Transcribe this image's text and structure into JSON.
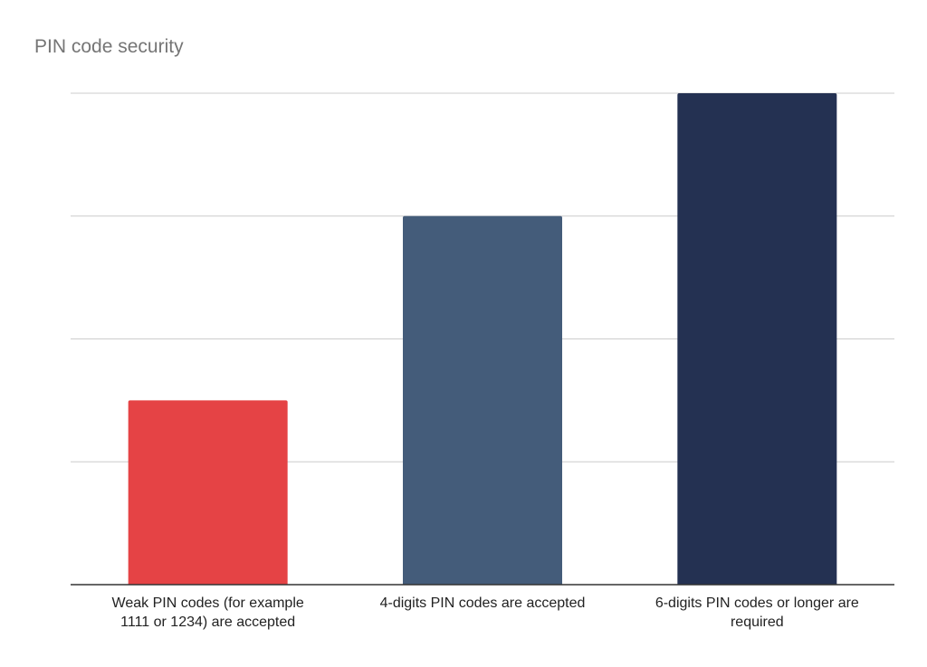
{
  "chart_data": {
    "type": "bar",
    "title": "PIN code security",
    "xlabel": "",
    "ylabel": "",
    "categories": [
      "Weak PIN codes (for example 1111 or 1234) are accepted",
      "4-digits PIN codes are accepted",
      "6-digits PIN codes or longer are required"
    ],
    "values": [
      1.5,
      3,
      4
    ],
    "colors": [
      "#e54345",
      "#445c7a",
      "#243152"
    ],
    "ylim": [
      0,
      4
    ],
    "gridlines": [
      0,
      1,
      2,
      3,
      4
    ],
    "grid": true,
    "y_tick_labels_shown": false,
    "legend": "none"
  }
}
